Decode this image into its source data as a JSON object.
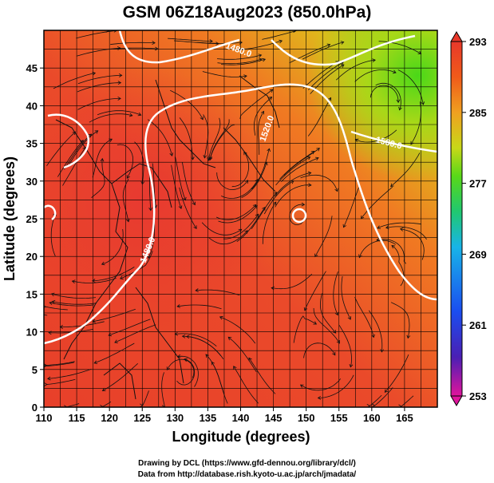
{
  "title": "GSM 06Z18Aug2023 (850.0hPa)",
  "x_axis": {
    "label": "Longitude (degrees)",
    "ticks": [
      "110",
      "115",
      "120",
      "125",
      "130",
      "135",
      "140",
      "145",
      "150",
      "155",
      "160",
      "165"
    ]
  },
  "y_axis": {
    "label": "Latitude  (degrees)",
    "ticks": [
      "0",
      "5",
      "10",
      "15",
      "20",
      "25",
      "30",
      "35",
      "40",
      "45"
    ]
  },
  "colorbar": {
    "ticks": [
      "253",
      "261",
      "269",
      "277",
      "285",
      "293"
    ],
    "stops": [
      "#e0149c",
      "#4a1fb4",
      "#1a4ef0",
      "#18b4e8",
      "#20c870",
      "#58d818",
      "#c8d818",
      "#f0a020",
      "#f05a1a",
      "#e8382a"
    ]
  },
  "contour_labels": [
    "1480.0",
    "1520.0",
    "1560.0",
    "1480.0"
  ],
  "credits": {
    "line1": "Drawing by DCL (https://www.gfd-dennou.org/library/dcl/)",
    "line2": "Data from http://database.rish.kyoto-u.ac.jp/arch/jmadata/"
  }
}
